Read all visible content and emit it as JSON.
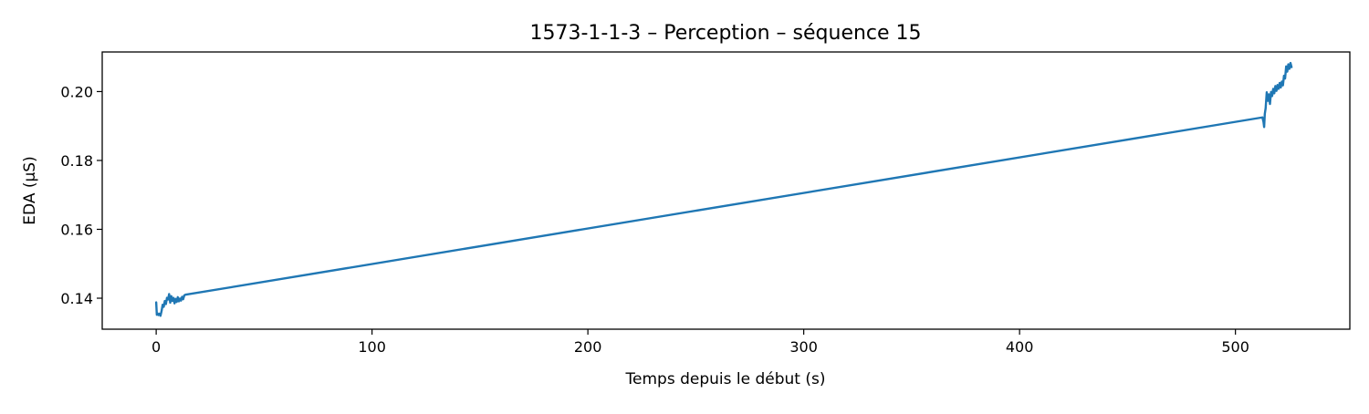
{
  "chart_data": {
    "type": "line",
    "title": "1573-1-1-3 – Perception – séquence 15",
    "xlabel": "Temps depuis le début (s)",
    "ylabel": "EDA (µS)",
    "xlim": [
      -25,
      553
    ],
    "ylim": [
      0.131,
      0.2115
    ],
    "xticks": [
      0,
      100,
      200,
      300,
      400,
      500
    ],
    "yticks": [
      0.14,
      0.16,
      0.18,
      0.2
    ],
    "ytick_labels": [
      "0.14",
      "0.16",
      "0.18",
      "0.20"
    ],
    "grid": false,
    "legend": "none",
    "series": [
      {
        "color": "#1f77b4",
        "x": [
          0.0,
          0.3,
          0.6,
          1.0,
          1.5,
          2.0,
          2.5,
          3.0,
          3.5,
          4.0,
          4.5,
          5.0,
          5.5,
          6.0,
          6.5,
          7.0,
          7.5,
          8.0,
          8.5,
          9.0,
          9.5,
          10.0,
          10.5,
          11.0,
          11.5,
          12.0,
          12.5,
          13.0,
          13.5,
          512.5,
          513.0,
          513.3,
          513.6,
          514.0,
          514.5,
          515.0,
          515.5,
          516.0,
          516.5,
          517.0,
          517.5,
          518.0,
          518.5,
          519.0,
          519.5,
          520.0,
          520.5,
          521.0,
          521.5,
          522.0,
          522.5,
          523.0,
          523.5,
          524.0,
          524.5,
          525.0,
          525.5,
          526.0
        ],
        "y": [
          0.1388,
          0.1352,
          0.1356,
          0.1351,
          0.1355,
          0.1349,
          0.1363,
          0.1381,
          0.1375,
          0.1392,
          0.1383,
          0.1401,
          0.1396,
          0.1412,
          0.1387,
          0.1406,
          0.1392,
          0.1401,
          0.1385,
          0.1398,
          0.1389,
          0.1403,
          0.1391,
          0.1399,
          0.1393,
          0.1404,
          0.1397,
          0.1408,
          0.141,
          0.1925,
          0.1912,
          0.1897,
          0.1935,
          0.1952,
          0.1998,
          0.1973,
          0.1992,
          0.1964,
          0.1999,
          0.1987,
          0.2008,
          0.1995,
          0.2016,
          0.2002,
          0.2019,
          0.2008,
          0.2025,
          0.2012,
          0.2029,
          0.2018,
          0.2046,
          0.2038,
          0.2073,
          0.2058,
          0.2079,
          0.2066,
          0.2083,
          0.2071
        ]
      }
    ]
  }
}
